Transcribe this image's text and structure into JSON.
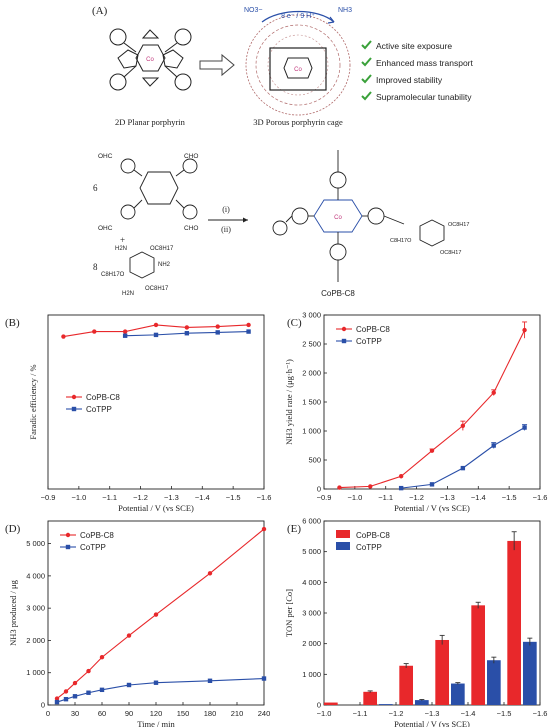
{
  "panel_labels": {
    "A": "(A)",
    "B": "(B)",
    "C": "(C)",
    "D": "(D)",
    "E": "(E)"
  },
  "schematic": {
    "nitrate_label": "NO3−",
    "electron_label": "8 e⁻ / 9 H⁺",
    "ammonia_label": "NH3",
    "planar_caption": "2D Planar porphyrin",
    "cage_caption": "3D Porous porphyrin cage",
    "metal_label": "Co",
    "features": [
      "Active site exposure",
      "Enhanced mass transport",
      "Improved stability",
      "Supramolecular tunability"
    ],
    "check_color": "#3aa13a",
    "synthesis": {
      "reagent1_count": "6",
      "reagent2_count": "8",
      "plus": "+",
      "step1": "(i)",
      "step2": "(ii)",
      "cho": "OHC",
      "cho_r": "CHO",
      "nh2": "NH2",
      "h2n": "H2N",
      "oc8": "OC8H17",
      "c8o": "C8H17O",
      "product_label": "CoPB-C8"
    }
  },
  "colors": {
    "red": "#e8282b",
    "blue": "#2a4fa8"
  },
  "chart_data": [
    {
      "panel": "B",
      "type": "line",
      "ylabel": "Faradic efficiency / %",
      "xlabel": "Potential / V (vs SCE)",
      "xticks": [
        "−0.9",
        "−1.0",
        "−1.1",
        "−1.2",
        "−1.3",
        "−1.4",
        "−1.5",
        "−1.6"
      ],
      "xlim": [
        -0.9,
        -1.6
      ],
      "ylim": [
        0,
        105
      ],
      "legend": "center-left",
      "series": [
        {
          "name": "CoPB-C8",
          "x": [
            -0.95,
            -1.05,
            -1.15,
            -1.25,
            -1.35,
            -1.45,
            -1.55
          ],
          "y": [
            92,
            95,
            95,
            99,
            97.5,
            98,
            99
          ]
        },
        {
          "name": "CoTPP",
          "x": [
            -1.15,
            -1.25,
            -1.35,
            -1.45,
            -1.55
          ],
          "y": [
            92.5,
            93,
            94,
            94.5,
            95
          ]
        }
      ]
    },
    {
      "panel": "C",
      "type": "line",
      "ylabel": "NH3 yield rate / (μg·h⁻¹)",
      "xlabel": "Potential / V (vs SCE)",
      "xticks": [
        "−0.9",
        "−1.0",
        "−1.1",
        "−1.2",
        "−1.3",
        "−1.4",
        "−1.5",
        "−1.6"
      ],
      "yticks": [
        "0",
        "500",
        "1 000",
        "1 500",
        "2 000",
        "2 500",
        "3 000"
      ],
      "xlim": [
        -0.9,
        -1.6
      ],
      "ylim": [
        0,
        3000
      ],
      "legend": "top-left",
      "series": [
        {
          "name": "CoPB-C8",
          "x": [
            -0.95,
            -1.05,
            -1.15,
            -1.25,
            -1.35,
            -1.45,
            -1.55
          ],
          "y": [
            25,
            45,
            220,
            660,
            1090,
            1660,
            2740
          ],
          "err": [
            0,
            0,
            0,
            30,
            80,
            50,
            140
          ]
        },
        {
          "name": "CoTPP",
          "x": [
            -1.15,
            -1.25,
            -1.35,
            -1.45,
            -1.55
          ],
          "y": [
            15,
            80,
            360,
            750,
            1060
          ],
          "err": [
            0,
            0,
            0,
            50,
            50
          ]
        }
      ]
    },
    {
      "panel": "D",
      "type": "line",
      "ylabel": "NH3 produced / μg",
      "xlabel": "Time / min",
      "xticks": [
        "0",
        "30",
        "60",
        "90",
        "120",
        "150",
        "180",
        "210",
        "240"
      ],
      "yticks": [
        "0",
        "1 000",
        "2 000",
        "3 000",
        "4 000",
        "5 000"
      ],
      "xlim": [
        0,
        240
      ],
      "ylim": [
        0,
        5700
      ],
      "legend": "top-left",
      "series": [
        {
          "name": "CoPB-C8",
          "x": [
            10,
            20,
            30,
            45,
            60,
            90,
            120,
            180,
            240
          ],
          "y": [
            200,
            420,
            680,
            1050,
            1480,
            2150,
            2800,
            4080,
            5450
          ]
        },
        {
          "name": "CoTPP",
          "x": [
            10,
            20,
            30,
            45,
            60,
            90,
            120,
            180,
            240
          ],
          "y": [
            90,
            180,
            270,
            380,
            470,
            620,
            690,
            750,
            820
          ]
        }
      ]
    },
    {
      "panel": "E",
      "type": "bar",
      "ylabel": "TON per [Co]",
      "xlabel": "Potential / V (vs SCE)",
      "xticks": [
        "−1.0",
        "−1.1",
        "−1.2",
        "−1.3",
        "−1.4",
        "−1.5",
        "−1.6"
      ],
      "yticks": [
        "0",
        "1 000",
        "2 000",
        "3 000",
        "4 000",
        "5 000",
        "6 000"
      ],
      "xlim": [
        -1.0,
        -1.6
      ],
      "ylim": [
        0,
        6000
      ],
      "legend": "top-left",
      "series": [
        {
          "name": "CoPB-C8",
          "x": [
            -1.0,
            -1.1,
            -1.2,
            -1.3,
            -1.4,
            -1.5
          ],
          "y": [
            80,
            430,
            1280,
            2120,
            3250,
            5350
          ],
          "err": [
            0,
            30,
            70,
            150,
            100,
            300
          ]
        },
        {
          "name": "CoTPP",
          "x": [
            -1.1,
            -1.2,
            -1.3,
            -1.4,
            -1.5
          ],
          "y": [
            30,
            160,
            700,
            1460,
            2060
          ],
          "err": [
            0,
            20,
            30,
            100,
            120
          ]
        }
      ]
    }
  ]
}
